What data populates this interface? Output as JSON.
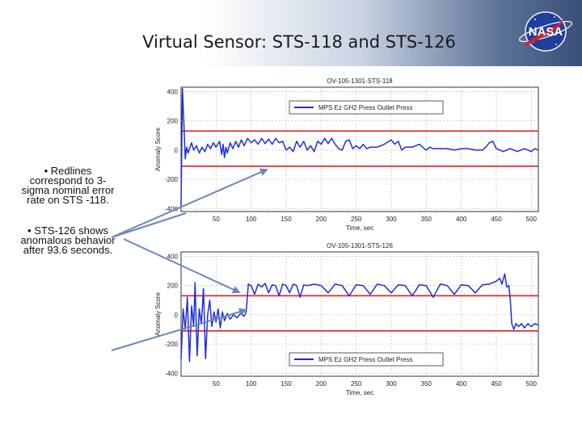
{
  "slide": {
    "title": "Virtual Sensor: STS-118 and STS-126",
    "logo_text": "NASA",
    "bullets": [
      "• Redlines correspond to 3-sigma nominal error rate on STS -118.",
      "• STS-126 shows anomalous behavior after 93.6 seconds."
    ]
  },
  "colors": {
    "series": "#1f2fd6",
    "redline": "#e02020",
    "grid": "#c8c8c8",
    "arrow": "#6b86b8"
  },
  "chart_data": [
    {
      "type": "line",
      "title": "OV-105-1301-STS-118",
      "xlabel": "Time, sec",
      "ylabel": "Anomaly Score",
      "xlim": [
        0,
        510
      ],
      "ylim": [
        -420,
        430
      ],
      "xticks": [
        50,
        100,
        150,
        200,
        250,
        300,
        350,
        400,
        450,
        500
      ],
      "yticks": [
        -400,
        -200,
        0,
        200,
        400
      ],
      "grid": true,
      "legend": "top-center",
      "redlines": [
        130,
        -110
      ],
      "series": [
        {
          "name": "MPS Ez GH2 Press Outlet Press",
          "points": [
            [
              0,
              -380
            ],
            [
              2,
              420
            ],
            [
              4,
              180
            ],
            [
              6,
              -60
            ],
            [
              8,
              20
            ],
            [
              10,
              -20
            ],
            [
              15,
              50
            ],
            [
              18,
              0
            ],
            [
              22,
              30
            ],
            [
              26,
              -20
            ],
            [
              30,
              20
            ],
            [
              34,
              -10
            ],
            [
              38,
              40
            ],
            [
              42,
              10
            ],
            [
              46,
              50
            ],
            [
              50,
              20
            ],
            [
              55,
              60
            ],
            [
              58,
              -30
            ],
            [
              60,
              40
            ],
            [
              62,
              -50
            ],
            [
              64,
              20
            ],
            [
              66,
              -20
            ],
            [
              70,
              50
            ],
            [
              74,
              10
            ],
            [
              78,
              60
            ],
            [
              82,
              20
            ],
            [
              86,
              70
            ],
            [
              90,
              30
            ],
            [
              95,
              80
            ],
            [
              100,
              50
            ],
            [
              105,
              70
            ],
            [
              110,
              40
            ],
            [
              115,
              80
            ],
            [
              120,
              45
            ],
            [
              125,
              75
            ],
            [
              130,
              40
            ],
            [
              135,
              80
            ],
            [
              140,
              50
            ],
            [
              145,
              60
            ],
            [
              150,
              0
            ],
            [
              155,
              20
            ],
            [
              160,
              -10
            ],
            [
              165,
              60
            ],
            [
              170,
              20
            ],
            [
              175,
              60
            ],
            [
              180,
              0
            ],
            [
              185,
              30
            ],
            [
              190,
              -10
            ],
            [
              195,
              60
            ],
            [
              200,
              40
            ],
            [
              205,
              80
            ],
            [
              210,
              45
            ],
            [
              215,
              80
            ],
            [
              220,
              40
            ],
            [
              225,
              10
            ],
            [
              230,
              0
            ],
            [
              235,
              60
            ],
            [
              240,
              70
            ],
            [
              245,
              10
            ],
            [
              250,
              30
            ],
            [
              255,
              10
            ],
            [
              260,
              40
            ],
            [
              265,
              10
            ],
            [
              270,
              20
            ],
            [
              280,
              20
            ],
            [
              290,
              40
            ],
            [
              300,
              70
            ],
            [
              305,
              40
            ],
            [
              310,
              60
            ],
            [
              315,
              0
            ],
            [
              320,
              20
            ],
            [
              330,
              20
            ],
            [
              340,
              40
            ],
            [
              345,
              20
            ],
            [
              350,
              0
            ],
            [
              355,
              20
            ],
            [
              360,
              10
            ],
            [
              370,
              10
            ],
            [
              380,
              10
            ],
            [
              390,
              0
            ],
            [
              400,
              10
            ],
            [
              410,
              10
            ],
            [
              420,
              0
            ],
            [
              430,
              0
            ],
            [
              435,
              20
            ],
            [
              440,
              50
            ],
            [
              445,
              60
            ],
            [
              450,
              10
            ],
            [
              455,
              0
            ],
            [
              460,
              -10
            ],
            [
              470,
              10
            ],
            [
              480,
              -10
            ],
            [
              490,
              10
            ],
            [
              500,
              -10
            ],
            [
              505,
              10
            ],
            [
              510,
              0
            ]
          ]
        }
      ]
    },
    {
      "type": "line",
      "title": "OV-105-1301-STS-126",
      "xlabel": "Time, sec",
      "ylabel": "Anomaly Score",
      "xlim": [
        0,
        510
      ],
      "ylim": [
        -420,
        430
      ],
      "xticks": [
        50,
        100,
        150,
        200,
        250,
        300,
        350,
        400,
        450,
        500
      ],
      "yticks": [
        -400,
        -200,
        0,
        200,
        400
      ],
      "grid": true,
      "legend": "bottom-center",
      "redlines": [
        130,
        -110
      ],
      "series": [
        {
          "name": "MPS Ez GH2 Press Outlet Press",
          "points": [
            [
              0,
              -300
            ],
            [
              3,
              40
            ],
            [
              6,
              -100
            ],
            [
              9,
              120
            ],
            [
              12,
              -320
            ],
            [
              15,
              60
            ],
            [
              18,
              -80
            ],
            [
              20,
              220
            ],
            [
              23,
              -280
            ],
            [
              26,
              40
            ],
            [
              29,
              -60
            ],
            [
              32,
              180
            ],
            [
              35,
              -300
            ],
            [
              38,
              0
            ],
            [
              41,
              100
            ],
            [
              44,
              -80
            ],
            [
              47,
              20
            ],
            [
              50,
              -50
            ],
            [
              53,
              40
            ],
            [
              56,
              -90
            ],
            [
              59,
              20
            ],
            [
              62,
              -40
            ],
            [
              66,
              10
            ],
            [
              70,
              -30
            ],
            [
              75,
              0
            ],
            [
              80,
              -20
            ],
            [
              85,
              10
            ],
            [
              90,
              -10
            ],
            [
              93,
              20
            ],
            [
              96,
              210
            ],
            [
              100,
              200
            ],
            [
              105,
              140
            ],
            [
              110,
              210
            ],
            [
              115,
              190
            ],
            [
              120,
              215
            ],
            [
              125,
              150
            ],
            [
              130,
              205
            ],
            [
              135,
              200
            ],
            [
              140,
              130
            ],
            [
              145,
              210
            ],
            [
              150,
              200
            ],
            [
              155,
              150
            ],
            [
              160,
              210
            ],
            [
              165,
              200
            ],
            [
              170,
              120
            ],
            [
              175,
              205
            ],
            [
              180,
              200
            ],
            [
              190,
              210
            ],
            [
              200,
              200
            ],
            [
              210,
              150
            ],
            [
              220,
              210
            ],
            [
              230,
              200
            ],
            [
              240,
              130
            ],
            [
              250,
              205
            ],
            [
              260,
              200
            ],
            [
              270,
              140
            ],
            [
              280,
              210
            ],
            [
              290,
              200
            ],
            [
              300,
              150
            ],
            [
              310,
              205
            ],
            [
              320,
              200
            ],
            [
              330,
              130
            ],
            [
              340,
              205
            ],
            [
              350,
              200
            ],
            [
              360,
              120
            ],
            [
              370,
              210
            ],
            [
              380,
              200
            ],
            [
              390,
              140
            ],
            [
              400,
              205
            ],
            [
              410,
              200
            ],
            [
              420,
              150
            ],
            [
              430,
              205
            ],
            [
              440,
              210
            ],
            [
              450,
              230
            ],
            [
              455,
              250
            ],
            [
              458,
              210
            ],
            [
              462,
              280
            ],
            [
              465,
              190
            ],
            [
              468,
              200
            ],
            [
              470,
              100
            ],
            [
              472,
              -60
            ],
            [
              475,
              -100
            ],
            [
              478,
              -60
            ],
            [
              482,
              -80
            ],
            [
              486,
              -60
            ],
            [
              490,
              -90
            ],
            [
              495,
              -60
            ],
            [
              500,
              -80
            ],
            [
              505,
              -60
            ],
            [
              510,
              -70
            ]
          ]
        }
      ]
    }
  ]
}
